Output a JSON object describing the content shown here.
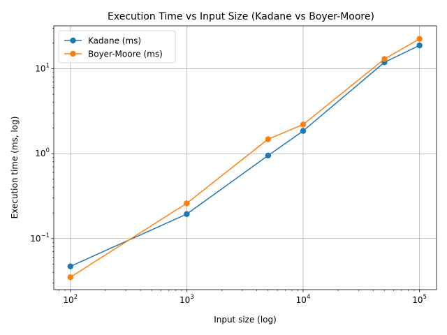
{
  "chart_data": {
    "type": "line",
    "title": "Execution Time vs Input Size (Kadane vs Boyer-Moore)",
    "xlabel": "Input size (log)",
    "ylabel": "Execution time (ms, log)",
    "xscale": "log",
    "yscale": "log",
    "xlim": [
      72,
      140000
    ],
    "ylim": [
      0.025,
      32
    ],
    "grid": true,
    "legend_position": "top-left",
    "x_major_ticks": [
      100,
      1000,
      10000,
      100000
    ],
    "y_major_ticks": [
      0.1,
      1,
      10
    ],
    "x": [
      100,
      1000,
      5000,
      10000,
      50000,
      100000
    ],
    "series": [
      {
        "name": "Kadane (ms)",
        "color": "#1f77b4",
        "marker": "circle",
        "values": [
          0.047,
          0.194,
          0.95,
          1.85,
          11.9,
          18.8
        ]
      },
      {
        "name": "Boyer-Moore (ms)",
        "color": "#ff7f0e",
        "marker": "circle",
        "values": [
          0.035,
          0.26,
          1.48,
          2.2,
          13.0,
          22.5
        ]
      }
    ]
  }
}
